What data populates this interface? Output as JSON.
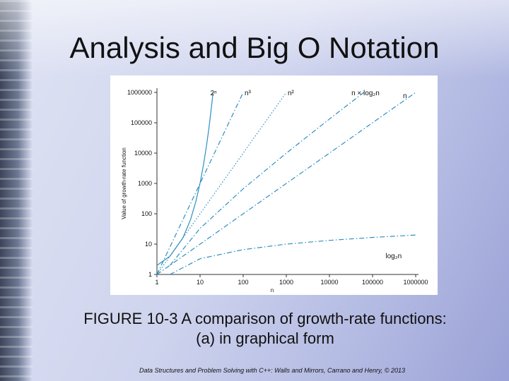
{
  "slide": {
    "title": "Analysis and Big O Notation",
    "caption_line1": "FIGURE 10-3 A comparison of growth-rate functions:",
    "caption_line2": "(a) in graphical form",
    "footer": "Data Structures and Problem Solving with C++: Walls and Mirrors, Carrano and Henry, © 2013"
  },
  "colors": {
    "series": "#2e8fc0",
    "axis": "#333333",
    "text": "#111111"
  },
  "chart_data": {
    "type": "line",
    "scale": {
      "x": "log10",
      "y": "log10"
    },
    "xlim": [
      1,
      1000000
    ],
    "ylim": [
      1,
      1000000
    ],
    "xlabel": "n",
    "ylabel": "Value of growth-rate function",
    "x_ticks": [
      1,
      10,
      100,
      1000,
      10000,
      100000,
      1000000
    ],
    "x_tick_labels": [
      "1",
      "10",
      "100",
      "1000",
      "10000",
      "100000",
      "1000000"
    ],
    "y_ticks": [
      1,
      10,
      100,
      1000,
      10000,
      100000,
      1000000
    ],
    "y_tick_labels": [
      "1",
      "10",
      "100",
      "1000",
      "10000",
      "100000",
      "1000000"
    ],
    "grid": false,
    "legend": "labels at line ends",
    "series": [
      {
        "name": "2ⁿ",
        "style": "solid",
        "label_x": 16,
        "label_y": 1000000,
        "x": [
          1,
          2,
          4,
          6,
          8,
          10,
          12,
          14,
          16,
          18,
          20
        ],
        "y": [
          2,
          4,
          16,
          64,
          256,
          1024,
          4096,
          16384,
          65536,
          262144,
          1000000
        ]
      },
      {
        "name": "n³",
        "style": "dashdot",
        "label_x": 100,
        "label_y": 1000000,
        "x": [
          1,
          10,
          100
        ],
        "y": [
          1,
          1000,
          1000000
        ]
      },
      {
        "name": "n²",
        "style": "dotted",
        "label_x": 1000,
        "label_y": 1000000,
        "x": [
          1,
          10,
          100,
          1000
        ],
        "y": [
          1,
          100,
          10000,
          1000000
        ]
      },
      {
        "name": "n × log₂n",
        "style": "dashdot",
        "label_x": 30000,
        "label_y": 1000000,
        "x": [
          2,
          10,
          100,
          1000,
          10000,
          62746
        ],
        "y": [
          2,
          33,
          664,
          9966,
          132877,
          1000000
        ]
      },
      {
        "name": "n",
        "style": "dashdot",
        "label_x": 1000000,
        "label_y": 1000000,
        "x": [
          1,
          1000000
        ],
        "y": [
          1,
          1000000
        ]
      },
      {
        "name": "log₂n",
        "style": "dashdot",
        "label_x": 200000,
        "label_y": 8,
        "x": [
          2,
          10,
          100,
          1000,
          10000,
          100000,
          1000000
        ],
        "y": [
          1,
          3.3,
          6.6,
          10,
          13.3,
          16.6,
          19.9
        ]
      }
    ]
  }
}
